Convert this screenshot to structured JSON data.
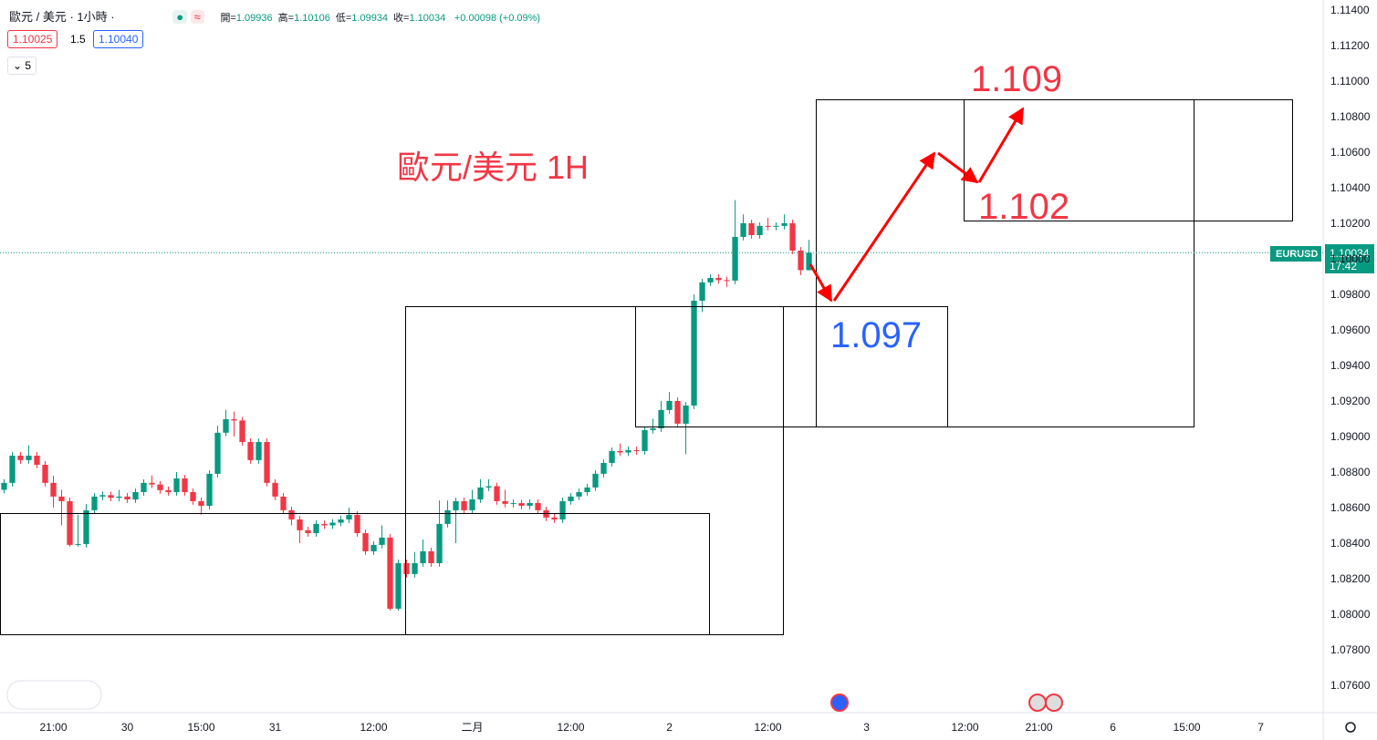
{
  "header": {
    "symbol": "歐元 / 美元 · 1小時 ·",
    "ohlc": [
      {
        "label": "開=",
        "value": "1.09936"
      },
      {
        "label": "高=",
        "value": "1.10106"
      },
      {
        "label": "低=",
        "value": "1.09934"
      },
      {
        "label": "收=",
        "value": "1.10034"
      }
    ],
    "change": "+0.00098 (+0.09%)",
    "bid": "1.10025",
    "spread": "1.5",
    "ask": "1.10040",
    "indicator": "5"
  },
  "annotations": {
    "title": "歐元/美元 1H",
    "target_high": "1.109",
    "target_mid": "1.102",
    "support": "1.097"
  },
  "price_tag": {
    "symbol": "EURUSD",
    "price": "1.10034",
    "countdown": "17:42"
  },
  "chart_data": {
    "type": "candlestick",
    "up_color": "#089981",
    "down_color": "#f23645",
    "grid": false,
    "ylim": [
      1.07446,
      1.11456
    ],
    "xlim": [
      -0.5,
      160.6
    ],
    "yticks": [
      {
        "value": 1.076,
        "label": "1.07600"
      },
      {
        "value": 1.078,
        "label": "1.07800"
      },
      {
        "value": 1.08,
        "label": "1.08000"
      },
      {
        "value": 1.082,
        "label": "1.08200"
      },
      {
        "value": 1.084,
        "label": "1.08400"
      },
      {
        "value": 1.086,
        "label": "1.08600"
      },
      {
        "value": 1.088,
        "label": "1.08800"
      },
      {
        "value": 1.09,
        "label": "1.09000"
      },
      {
        "value": 1.092,
        "label": "1.09200"
      },
      {
        "value": 1.094,
        "label": "1.09400"
      },
      {
        "value": 1.096,
        "label": "1.09600"
      },
      {
        "value": 1.098,
        "label": "1.09800"
      },
      {
        "value": 1.1,
        "label": "1.10000"
      },
      {
        "value": 1.102,
        "label": "1.10200"
      },
      {
        "value": 1.104,
        "label": "1.10400"
      },
      {
        "value": 1.106,
        "label": "1.10600"
      },
      {
        "value": 1.108,
        "label": "1.10800"
      },
      {
        "value": 1.11,
        "label": "1.11000"
      },
      {
        "value": 1.112,
        "label": "1.11200"
      },
      {
        "value": 1.114,
        "label": "1.11400"
      }
    ],
    "xticks": [
      {
        "value": 6,
        "label": "21:00"
      },
      {
        "value": 15,
        "label": "30"
      },
      {
        "value": 24,
        "label": "15:00"
      },
      {
        "value": 33,
        "label": "31"
      },
      {
        "value": 45,
        "label": "12:00"
      },
      {
        "value": 57,
        "label": "二月"
      },
      {
        "value": 69,
        "label": "12:00"
      },
      {
        "value": 81,
        "label": "2"
      },
      {
        "value": 93,
        "label": "12:00"
      },
      {
        "value": 105,
        "label": "3"
      },
      {
        "value": 117,
        "label": "12:00"
      },
      {
        "value": 126,
        "label": "21:00"
      },
      {
        "value": 135,
        "label": "6"
      },
      {
        "value": 144,
        "label": "15:00"
      },
      {
        "value": 153,
        "label": "7"
      }
    ],
    "open": [
      1.087,
      1.08739,
      1.08892,
      1.08867,
      1.08892,
      1.08841,
      1.08739,
      1.08662,
      1.08636,
      1.0839,
      1.08395,
      1.08585,
      1.08662,
      1.0867,
      1.08655,
      1.08662,
      1.08646,
      1.08687,
      1.08739,
      1.0873,
      1.08698,
      1.08687,
      1.08764,
      1.08687,
      1.08636,
      1.0861,
      1.0879,
      1.09021,
      1.09097,
      1.0909,
      1.08969,
      1.08867,
      1.08969,
      1.08739,
      1.08662,
      1.08585,
      1.08533,
      1.08472,
      1.08456,
      1.08508,
      1.085,
      1.08515,
      1.08533,
      1.08559,
      1.08456,
      1.08354,
      1.0839,
      1.08431,
      1.08031,
      1.08287,
      1.08226,
      1.08287,
      1.08354,
      1.08287,
      1.08508,
      1.08585,
      1.08636,
      1.08585,
      1.08646,
      1.08713,
      1.0872,
      1.08636,
      1.08621,
      1.08625,
      1.0861,
      1.08626,
      1.08585,
      1.08544,
      1.08533,
      1.08636,
      1.08662,
      1.08687,
      1.08713,
      1.0879,
      1.08851,
      1.08918,
      1.0891,
      1.08923,
      1.08918,
      1.09036,
      1.09046,
      1.09149,
      1.092,
      1.09072,
      1.09174,
      1.09764,
      1.09867,
      1.09892,
      1.0988,
      1.09877,
      1.10123,
      1.102,
      1.10133,
      1.10185,
      1.1018,
      1.10185,
      1.102,
      1.10046,
      1.09936
    ],
    "high": [
      1.0876,
      1.08912,
      1.08912,
      1.0895,
      1.08912,
      1.08861,
      1.0878,
      1.087,
      1.08656,
      1.0856,
      1.0862,
      1.08682,
      1.0869,
      1.0869,
      1.087,
      1.08682,
      1.08707,
      1.08759,
      1.0878,
      1.0875,
      1.08718,
      1.088,
      1.08784,
      1.08707,
      1.08656,
      1.0881,
      1.0906,
      1.0915,
      1.0914,
      1.0911,
      1.08989,
      1.08989,
      1.08989,
      1.08759,
      1.08682,
      1.08605,
      1.08553,
      1.08492,
      1.08528,
      1.08528,
      1.08535,
      1.08553,
      1.086,
      1.08579,
      1.08476,
      1.0841,
      1.085,
      1.08451,
      1.08307,
      1.08307,
      1.0835,
      1.0842,
      1.08374,
      1.0864,
      1.0864,
      1.08656,
      1.08656,
      1.087,
      1.0876,
      1.0876,
      1.0874,
      1.087,
      1.08645,
      1.08645,
      1.08646,
      1.08646,
      1.08605,
      1.08564,
      1.08656,
      1.08682,
      1.08707,
      1.08733,
      1.0881,
      1.08871,
      1.08938,
      1.0896,
      1.08943,
      1.08943,
      1.09056,
      1.091,
      1.092,
      1.0925,
      1.0922,
      1.09194,
      1.098,
      1.09887,
      1.09912,
      1.09912,
      1.099,
      1.1033,
      1.1025,
      1.1022,
      1.10205,
      1.1023,
      1.10205,
      1.1025,
      1.1022,
      1.10066,
      1.10106
    ],
    "low": [
      1.0868,
      1.08719,
      1.08847,
      1.08847,
      1.08821,
      1.08719,
      1.086,
      1.085,
      1.0838,
      1.0838,
      1.08375,
      1.08565,
      1.08642,
      1.08635,
      1.08635,
      1.08626,
      1.08626,
      1.08667,
      1.0871,
      1.08678,
      1.08667,
      1.08667,
      1.08667,
      1.08616,
      1.0856,
      1.0859,
      1.0877,
      1.09001,
      1.09,
      1.08949,
      1.08847,
      1.08847,
      1.08719,
      1.08642,
      1.08565,
      1.085,
      1.084,
      1.08436,
      1.08436,
      1.0848,
      1.0848,
      1.08495,
      1.08513,
      1.08436,
      1.08334,
      1.08334,
      1.0837,
      1.0802,
      1.0802,
      1.08206,
      1.08206,
      1.08267,
      1.08267,
      1.08267,
      1.08488,
      1.084,
      1.08565,
      1.08565,
      1.08626,
      1.08693,
      1.08616,
      1.08601,
      1.08601,
      1.0859,
      1.0859,
      1.08565,
      1.08524,
      1.08513,
      1.08513,
      1.08616,
      1.08642,
      1.08667,
      1.08693,
      1.0877,
      1.08831,
      1.0889,
      1.0889,
      1.08898,
      1.08898,
      1.09016,
      1.09026,
      1.09129,
      1.09052,
      1.089,
      1.09154,
      1.097,
      1.09847,
      1.0986,
      1.0984,
      1.09857,
      1.10103,
      1.10113,
      1.10113,
      1.1016,
      1.1016,
      1.10165,
      1.10026,
      1.09908,
      1.09934
    ],
    "close": [
      1.08739,
      1.08892,
      1.08867,
      1.08892,
      1.08841,
      1.08739,
      1.08662,
      1.08636,
      1.0839,
      1.08395,
      1.08585,
      1.08662,
      1.0867,
      1.08655,
      1.08662,
      1.08646,
      1.08687,
      1.08739,
      1.0873,
      1.08698,
      1.08687,
      1.08764,
      1.08687,
      1.08636,
      1.0861,
      1.0879,
      1.09021,
      1.09097,
      1.0909,
      1.08969,
      1.08867,
      1.08969,
      1.08739,
      1.08662,
      1.08585,
      1.08533,
      1.08472,
      1.08456,
      1.08508,
      1.085,
      1.08515,
      1.08533,
      1.08559,
      1.08456,
      1.08354,
      1.0839,
      1.08431,
      1.08031,
      1.08287,
      1.08226,
      1.08287,
      1.08354,
      1.08287,
      1.08508,
      1.08585,
      1.08636,
      1.08585,
      1.08646,
      1.08713,
      1.0872,
      1.08636,
      1.08621,
      1.08625,
      1.0861,
      1.08626,
      1.08585,
      1.08544,
      1.08533,
      1.08636,
      1.08662,
      1.08687,
      1.08713,
      1.0879,
      1.08851,
      1.08918,
      1.0891,
      1.08923,
      1.08918,
      1.09036,
      1.09046,
      1.09149,
      1.092,
      1.09072,
      1.09174,
      1.09764,
      1.09867,
      1.09892,
      1.0988,
      1.09877,
      1.10123,
      1.102,
      1.10133,
      1.10185,
      1.1018,
      1.10185,
      1.102,
      1.10046,
      1.09936,
      1.10034
    ]
  }
}
